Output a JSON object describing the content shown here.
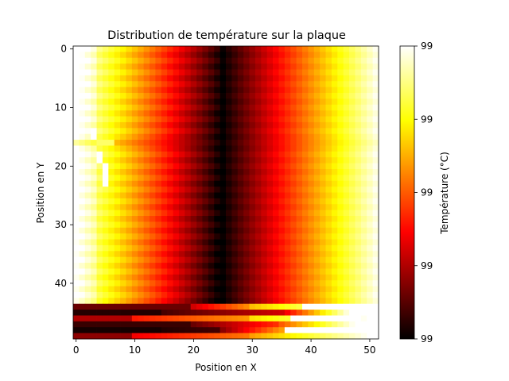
{
  "chart_data": {
    "type": "heatmap",
    "title": "Distribution de température sur la plaque",
    "xlabel": "Position en X",
    "ylabel": "Position en Y",
    "colorbar_label": "Température (°C)",
    "colormap": "hot",
    "colormap_stops": [
      "#000000",
      "#ff0000",
      "#ffff00",
      "#ffffff"
    ],
    "grid": false,
    "xlim": [
      -0.5,
      51.5
    ],
    "ylim": [
      49.5,
      -0.5
    ],
    "x_ticks": [
      0,
      10,
      20,
      30,
      40,
      50
    ],
    "y_ticks": [
      0,
      10,
      20,
      30,
      40
    ],
    "colorbar_tick_labels": [
      "99",
      "99",
      "99",
      "99",
      "99"
    ],
    "columns": 52,
    "rows": 50,
    "description_of_values": "Normalized temperature 0 (coldest) to 1 (hottest): hot at left edge, minimum near x=24-26, rising again toward right edge; rows 44-49 perturbed with alternating bright/dark bands."
  }
}
